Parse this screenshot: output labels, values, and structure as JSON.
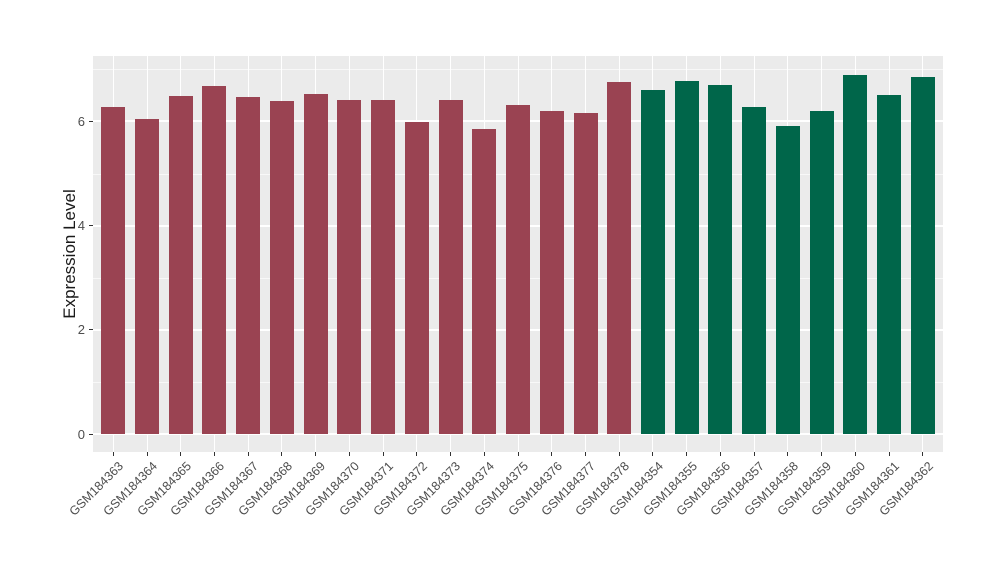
{
  "figure": {
    "background": "#FFFFFF",
    "panel_background": "#EBEBEB",
    "grid_color": "#FFFFFF",
    "axis_text_color": "#4D4D4D",
    "tick_mark_color": "#333333"
  },
  "chart_data": {
    "type": "bar",
    "title": "",
    "xlabel": "",
    "ylabel": "Expression Level",
    "categories": [
      "GSM184363",
      "GSM184364",
      "GSM184365",
      "GSM184366",
      "GSM184367",
      "GSM184368",
      "GSM184369",
      "GSM184370",
      "GSM184371",
      "GSM184372",
      "GSM184373",
      "GSM184374",
      "GSM184375",
      "GSM184376",
      "GSM184377",
      "GSM184378",
      "GSM184354",
      "GSM184355",
      "GSM184356",
      "GSM184357",
      "GSM184358",
      "GSM184359",
      "GSM184360",
      "GSM184361",
      "GSM184362"
    ],
    "values": [
      6.28,
      6.05,
      6.49,
      6.68,
      6.47,
      6.4,
      6.53,
      6.42,
      6.42,
      5.99,
      6.41,
      5.86,
      6.31,
      6.21,
      6.17,
      6.76,
      6.6,
      6.78,
      6.7,
      6.27,
      5.91,
      6.21,
      6.9,
      6.5,
      6.85
    ],
    "series": [
      {
        "name": "group-GSM184363-GSM184378",
        "color": "#9A4352",
        "count": 16
      },
      {
        "name": "group-GSM184354-GSM184362",
        "color": "#00664A",
        "count": 9
      }
    ],
    "ylim": [
      0,
      7.25
    ],
    "yticks": [
      0,
      2,
      4,
      6
    ],
    "ytick_labels": [
      "0",
      "2",
      "4",
      "6"
    ],
    "minor_yticks": [
      1,
      3,
      5,
      7
    ],
    "grid": true,
    "legend_position": "none"
  }
}
